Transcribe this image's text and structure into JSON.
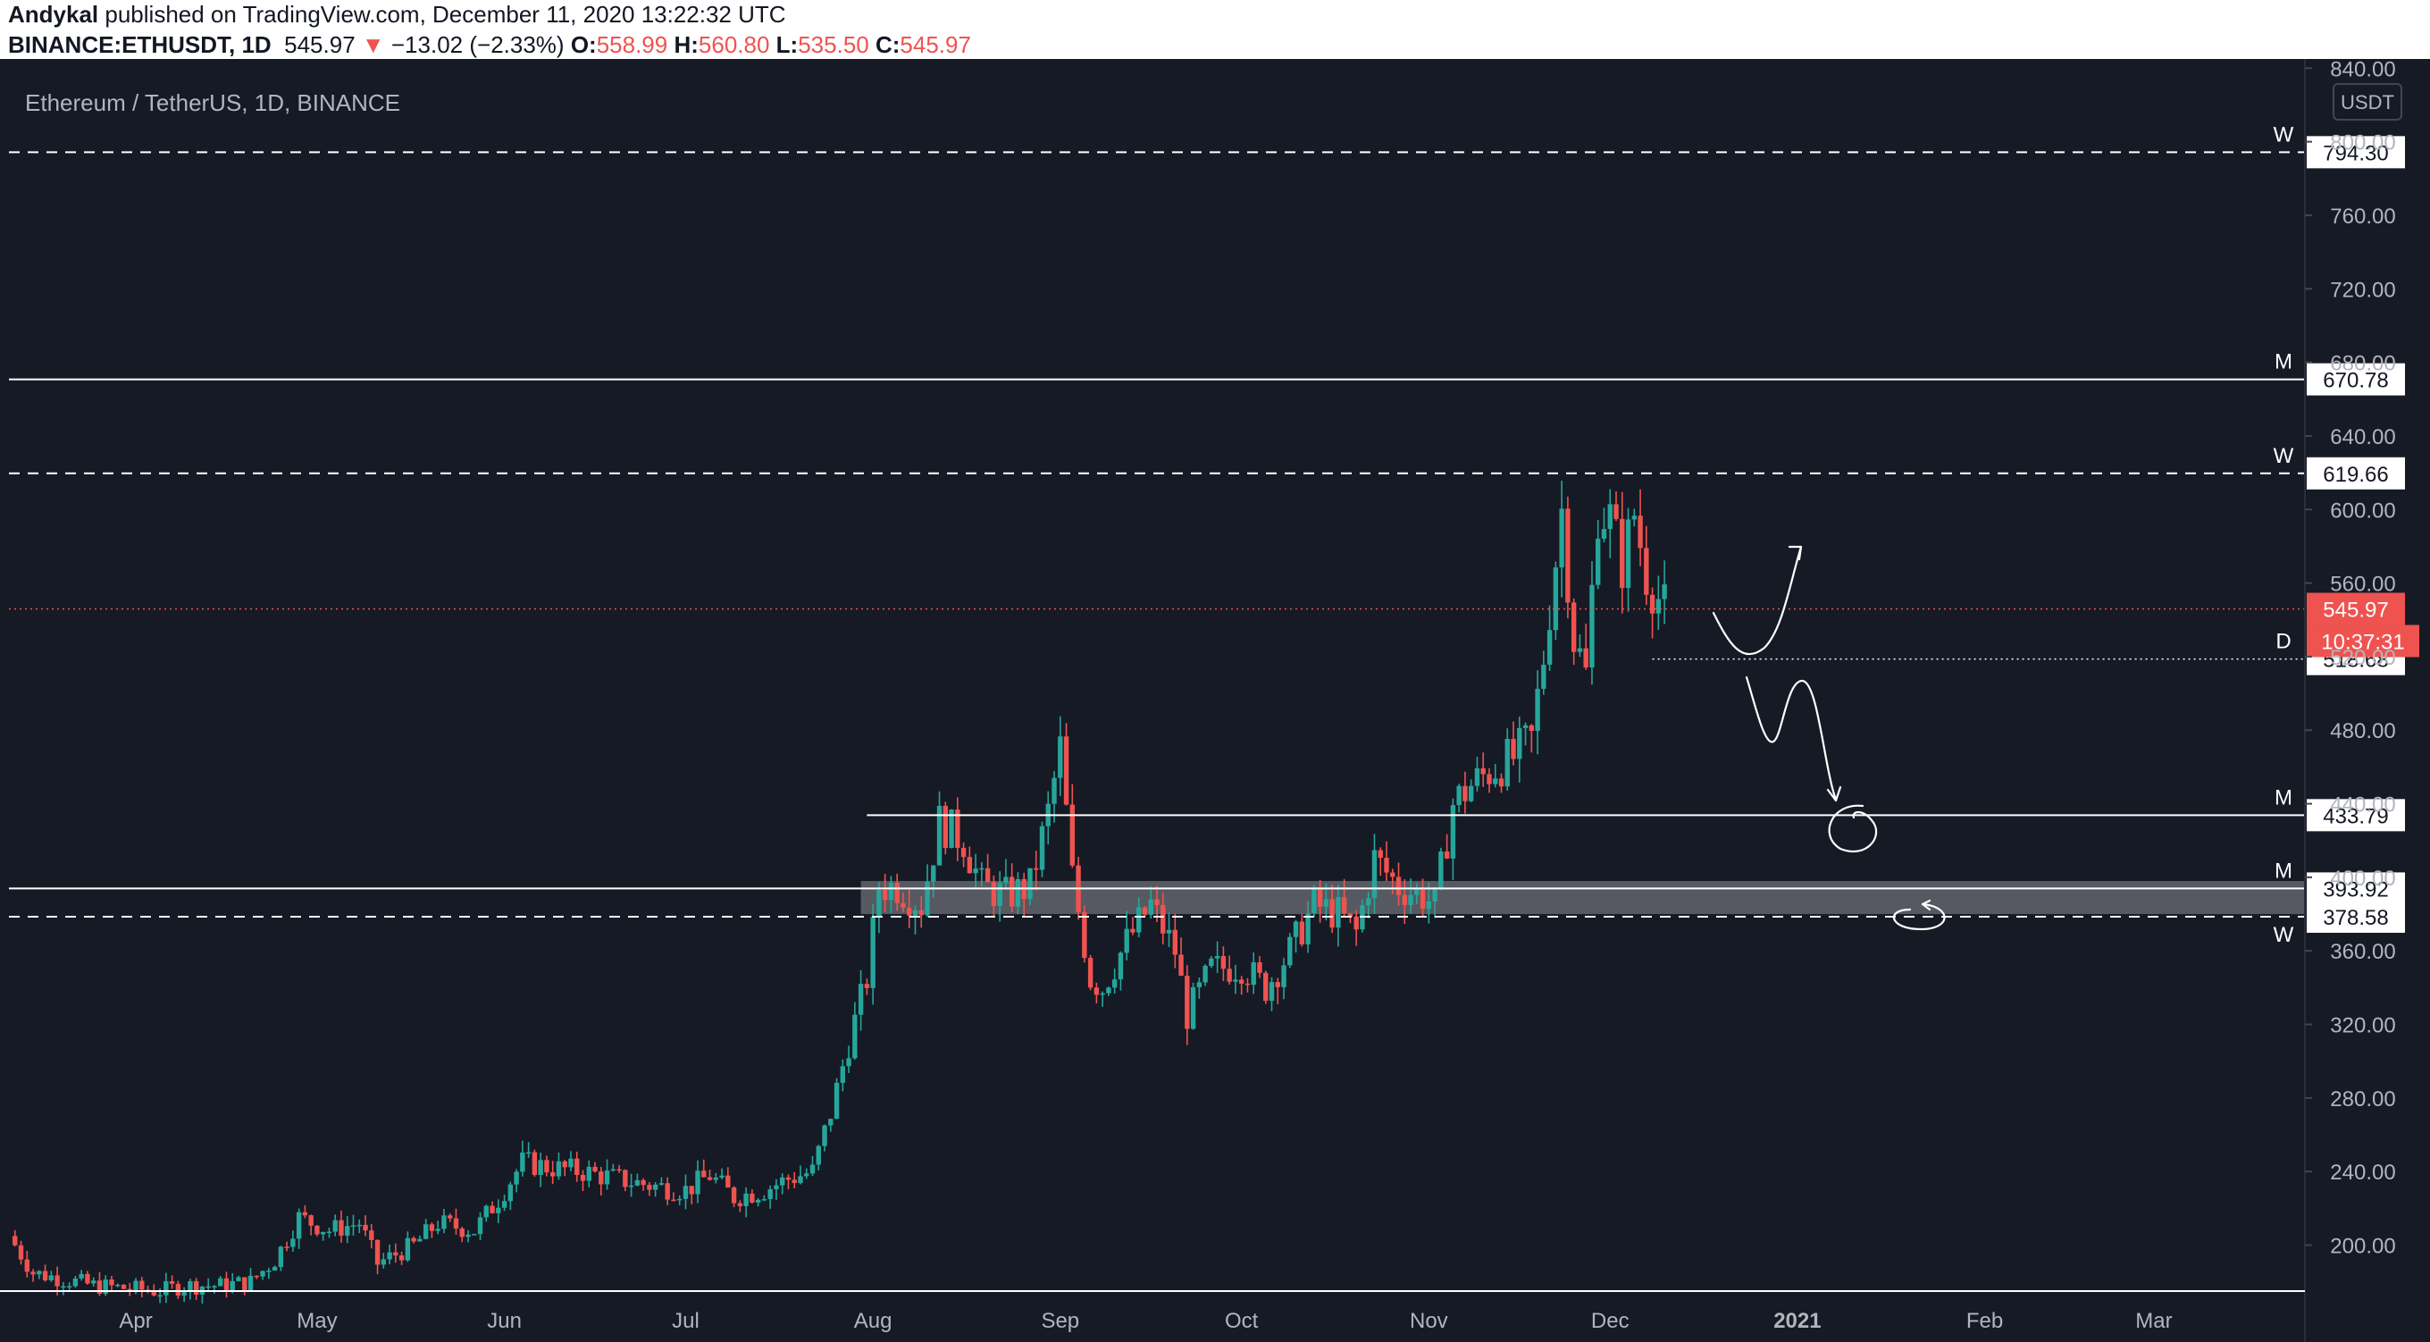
{
  "header": {
    "author": "Andykal",
    "published_text": "published on TradingView.com, December 11, 2020 13:22:32 UTC",
    "symbol": "BINANCE:ETHUSDT, 1D",
    "last": "545.97",
    "change_arrow": "▼",
    "change": "−13.02 (−2.33%)",
    "o_label": "O:",
    "o_value": "558.99",
    "h_label": "H:",
    "h_value": "560.80",
    "l_label": "L:",
    "l_value": "535.50",
    "c_label": "C:",
    "c_value": "545.97"
  },
  "chart": {
    "legend_title": "Ethereum / TetherUS, 1D, BINANCE",
    "currency_button": "USDT",
    "countdown": "10:37:31",
    "colors": {
      "background": "#161a25",
      "up": "#26a69a",
      "down": "#ef5350",
      "axis_text": "#b2b5be",
      "line": "#ffffff"
    }
  },
  "chart_data": {
    "type": "candlestick",
    "title": "Ethereum / TetherUS, 1D, BINANCE",
    "ylim": [
      175,
      845
    ],
    "y_ticks": [
      840,
      800,
      760,
      720,
      680,
      640,
      600,
      560,
      520,
      480,
      440,
      400,
      360,
      320,
      280,
      240,
      200
    ],
    "x_tick_labels": [
      "Apr",
      "May",
      "Jun",
      "Jul",
      "Aug",
      "Sep",
      "Oct",
      "Nov",
      "Dec",
      "2021",
      "Feb",
      "Mar"
    ],
    "x_range": [
      "2020-03-11",
      "2021-03-26"
    ],
    "last_price": 545.97,
    "levels": [
      {
        "price": 794.3,
        "label": "794.30",
        "tag": "W",
        "style": "dashed",
        "start": "2020-03-11"
      },
      {
        "price": 670.78,
        "label": "670.78",
        "tag": "M",
        "style": "solid",
        "start": "2020-03-11"
      },
      {
        "price": 619.66,
        "label": "619.66",
        "tag": "W",
        "style": "dashed",
        "start": "2020-03-11"
      },
      {
        "price": 518.68,
        "label": "518.68",
        "tag": "D",
        "style": "dotted",
        "start": "2020-12-08"
      },
      {
        "price": 433.79,
        "label": "433.79",
        "tag": "M",
        "style": "solid",
        "start": "2020-07-31"
      },
      {
        "price": 393.92,
        "label": "393.92",
        "tag": "M",
        "style": "solid",
        "start": "2020-03-11"
      },
      {
        "price": 378.58,
        "label": "378.58",
        "tag": "W",
        "style": "dashed",
        "start": "2020-03-11"
      }
    ],
    "zone": {
      "from": 380,
      "to": 398,
      "start": "2020-07-30"
    },
    "series": [
      {
        "date": "2020-03-12",
        "value": 205
      },
      {
        "date": "2020-03-16",
        "value": 185
      },
      {
        "date": "2020-03-26",
        "value": 178
      },
      {
        "date": "2020-04-06",
        "value": 175
      },
      {
        "date": "2020-04-10",
        "value": 178
      },
      {
        "date": "2020-04-16",
        "value": 178
      },
      {
        "date": "2020-04-21",
        "value": 180
      },
      {
        "date": "2020-04-25",
        "value": 192
      },
      {
        "date": "2020-04-29",
        "value": 215
      },
      {
        "date": "2020-05-04",
        "value": 208
      },
      {
        "date": "2020-05-09",
        "value": 212
      },
      {
        "date": "2020-05-12",
        "value": 190
      },
      {
        "date": "2020-05-18",
        "value": 200
      },
      {
        "date": "2020-05-22",
        "value": 212
      },
      {
        "date": "2020-05-28",
        "value": 208
      },
      {
        "date": "2020-06-01",
        "value": 225
      },
      {
        "date": "2020-06-05",
        "value": 245
      },
      {
        "date": "2020-06-10",
        "value": 242
      },
      {
        "date": "2020-06-15",
        "value": 240
      },
      {
        "date": "2020-06-22",
        "value": 235
      },
      {
        "date": "2020-06-27",
        "value": 232
      },
      {
        "date": "2020-07-02",
        "value": 230
      },
      {
        "date": "2020-07-06",
        "value": 238
      },
      {
        "date": "2020-07-10",
        "value": 226
      },
      {
        "date": "2020-07-15",
        "value": 230
      },
      {
        "date": "2020-07-19",
        "value": 236
      },
      {
        "date": "2020-07-23",
        "value": 240
      },
      {
        "date": "2020-07-26",
        "value": 272
      },
      {
        "date": "2020-07-29",
        "value": 310
      },
      {
        "date": "2020-08-01",
        "value": 345
      },
      {
        "date": "2020-08-03",
        "value": 395
      },
      {
        "date": "2020-08-06",
        "value": 395
      },
      {
        "date": "2020-08-10",
        "value": 385
      },
      {
        "date": "2020-08-13",
        "value": 430
      },
      {
        "date": "2020-08-17",
        "value": 420
      },
      {
        "date": "2020-08-20",
        "value": 395
      },
      {
        "date": "2020-08-24",
        "value": 390
      },
      {
        "date": "2020-08-28",
        "value": 395
      },
      {
        "date": "2020-08-31",
        "value": 435
      },
      {
        "date": "2020-09-02",
        "value": 470
      },
      {
        "date": "2020-09-04",
        "value": 400
      },
      {
        "date": "2020-09-07",
        "value": 345
      },
      {
        "date": "2020-09-09",
        "value": 340
      },
      {
        "date": "2020-09-13",
        "value": 365
      },
      {
        "date": "2020-09-17",
        "value": 385
      },
      {
        "date": "2020-09-21",
        "value": 360
      },
      {
        "date": "2020-09-23",
        "value": 325
      },
      {
        "date": "2020-09-27",
        "value": 350
      },
      {
        "date": "2020-10-02",
        "value": 352
      },
      {
        "date": "2020-10-06",
        "value": 340
      },
      {
        "date": "2020-10-10",
        "value": 360
      },
      {
        "date": "2020-10-14",
        "value": 385
      },
      {
        "date": "2020-10-18",
        "value": 380
      },
      {
        "date": "2020-10-21",
        "value": 370
      },
      {
        "date": "2020-10-24",
        "value": 410
      },
      {
        "date": "2020-10-28",
        "value": 395
      },
      {
        "date": "2020-11-01",
        "value": 390
      },
      {
        "date": "2020-11-03",
        "value": 385
      },
      {
        "date": "2020-11-06",
        "value": 440
      },
      {
        "date": "2020-11-09",
        "value": 450
      },
      {
        "date": "2020-11-13",
        "value": 460
      },
      {
        "date": "2020-11-16",
        "value": 465
      },
      {
        "date": "2020-11-19",
        "value": 475
      },
      {
        "date": "2020-11-21",
        "value": 520
      },
      {
        "date": "2020-11-24",
        "value": 600
      },
      {
        "date": "2020-11-26",
        "value": 530
      },
      {
        "date": "2020-11-28",
        "value": 510
      },
      {
        "date": "2020-11-30",
        "value": 600
      },
      {
        "date": "2020-12-02",
        "value": 595
      },
      {
        "date": "2020-12-04",
        "value": 570
      },
      {
        "date": "2020-12-06",
        "value": 598
      },
      {
        "date": "2020-12-08",
        "value": 565
      },
      {
        "date": "2020-12-10",
        "value": 552
      },
      {
        "date": "2020-12-11",
        "value": 546
      }
    ]
  }
}
